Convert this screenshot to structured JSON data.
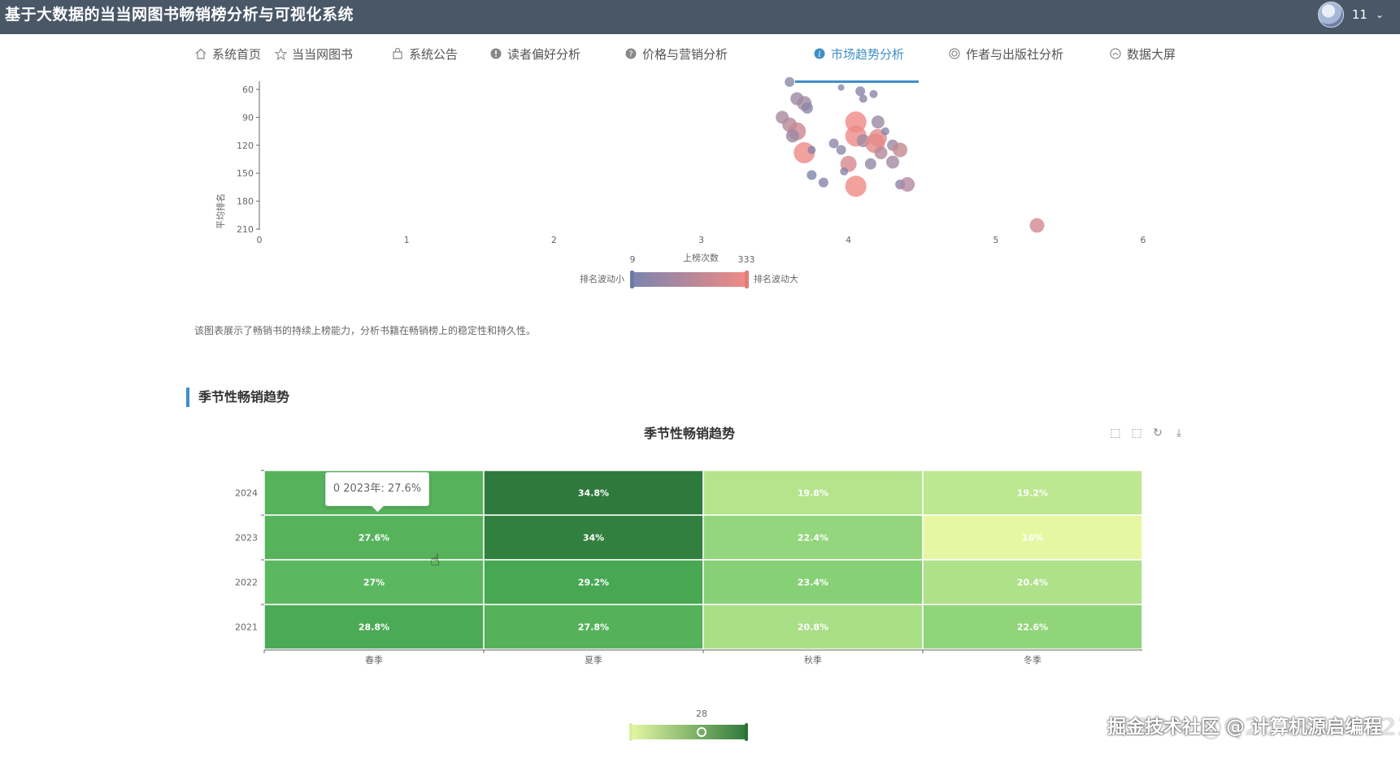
{
  "app": {
    "title": "基于大数据的当当网图书畅销榜分析与可视化系统",
    "user_name": "11"
  },
  "nav": {
    "tabs": [
      {
        "label": "系统首页",
        "icon": "home-icon"
      },
      {
        "label": "当当网图书",
        "icon": "star-icon"
      },
      {
        "label": "系统公告",
        "icon": "bag-icon"
      },
      {
        "label": "读者偏好分析",
        "icon": "exclamation-icon"
      },
      {
        "label": "价格与营销分析",
        "icon": "question-icon"
      },
      {
        "label": "市场趋势分析",
        "icon": "info-icon",
        "active": true
      },
      {
        "label": "作者与出版社分析",
        "icon": "circle-icon"
      },
      {
        "label": "数据大屏",
        "icon": "dashboard-icon"
      }
    ]
  },
  "scatter": {
    "ylabel": "平均排名",
    "xlabel": "",
    "yticks": [
      "60",
      "90",
      "120",
      "150",
      "180",
      "210"
    ],
    "xticks": [
      "0",
      "1",
      "2",
      "3",
      "4",
      "5",
      "6"
    ],
    "visualmap": {
      "title": "上榜次数",
      "min": "9",
      "max": "333",
      "low_label": "排名波动小",
      "high_label": "排名波动大",
      "color_low": "#7b85b0",
      "color_high": "#f08a84"
    },
    "description": "该图表展示了畅销书的持续上榜能力，分析书籍在畅销榜上的稳定性和持久性。"
  },
  "chart_data": [
    {
      "type": "scatter",
      "ylabel": "平均排名",
      "x_ticks": [
        0,
        1,
        2,
        3,
        4,
        5,
        6
      ],
      "y_ticks": [
        60,
        90,
        120,
        150,
        180,
        210
      ],
      "y_inverse": true,
      "points": [
        {
          "x": 3.6,
          "y": 52,
          "size": 6,
          "color": "#8c87a6"
        },
        {
          "x": 3.65,
          "y": 70,
          "size": 8,
          "color": "#9a88a3"
        },
        {
          "x": 3.7,
          "y": 75,
          "size": 9,
          "color": "#a08aa0"
        },
        {
          "x": 3.72,
          "y": 80,
          "size": 7,
          "color": "#8a86a8"
        },
        {
          "x": 3.55,
          "y": 90,
          "size": 8,
          "color": "#a88aa0"
        },
        {
          "x": 3.6,
          "y": 98,
          "size": 9,
          "color": "#b28a9b"
        },
        {
          "x": 3.65,
          "y": 105,
          "size": 11,
          "color": "#cc8690"
        },
        {
          "x": 3.62,
          "y": 110,
          "size": 8,
          "color": "#9b88a4"
        },
        {
          "x": 3.7,
          "y": 128,
          "size": 13,
          "color": "#ee8a86"
        },
        {
          "x": 3.75,
          "y": 125,
          "size": 5,
          "color": "#8785aa"
        },
        {
          "x": 3.75,
          "y": 152,
          "size": 6,
          "color": "#7f84ad"
        },
        {
          "x": 3.9,
          "y": 118,
          "size": 6,
          "color": "#8d86a8"
        },
        {
          "x": 4.0,
          "y": 140,
          "size": 10,
          "color": "#d68890"
        },
        {
          "x": 4.05,
          "y": 95,
          "size": 13,
          "color": "#ef8a86"
        },
        {
          "x": 4.05,
          "y": 110,
          "size": 13,
          "color": "#ee8a86"
        },
        {
          "x": 3.97,
          "y": 148,
          "size": 5,
          "color": "#8a86a8"
        },
        {
          "x": 4.1,
          "y": 115,
          "size": 8,
          "color": "#9f89a2"
        },
        {
          "x": 4.18,
          "y": 118,
          "size": 12,
          "color": "#e48a88"
        },
        {
          "x": 4.2,
          "y": 112,
          "size": 11,
          "color": "#e58a88"
        },
        {
          "x": 4.15,
          "y": 140,
          "size": 7,
          "color": "#9488a6"
        },
        {
          "x": 4.22,
          "y": 128,
          "size": 8,
          "color": "#b38a9a"
        },
        {
          "x": 4.25,
          "y": 105,
          "size": 5,
          "color": "#8685aa"
        },
        {
          "x": 4.3,
          "y": 138,
          "size": 8,
          "color": "#a389a0"
        },
        {
          "x": 4.2,
          "y": 95,
          "size": 8,
          "color": "#9a88a3"
        },
        {
          "x": 4.3,
          "y": 120,
          "size": 7,
          "color": "#9c89a3"
        },
        {
          "x": 4.35,
          "y": 125,
          "size": 9,
          "color": "#c3898f"
        },
        {
          "x": 4.05,
          "y": 164,
          "size": 13,
          "color": "#f08a84"
        },
        {
          "x": 3.83,
          "y": 160,
          "size": 6,
          "color": "#8784aa"
        },
        {
          "x": 3.95,
          "y": 125,
          "size": 6,
          "color": "#8f87a7"
        },
        {
          "x": 4.35,
          "y": 162,
          "size": 6,
          "color": "#8985a9"
        },
        {
          "x": 4.4,
          "y": 162,
          "size": 9,
          "color": "#b289a0"
        },
        {
          "x": 4.08,
          "y": 62,
          "size": 6,
          "color": "#8985a9"
        },
        {
          "x": 4.1,
          "y": 70,
          "size": 5,
          "color": "#8886aa"
        },
        {
          "x": 4.17,
          "y": 65,
          "size": 5,
          "color": "#8986a9"
        },
        {
          "x": 3.95,
          "y": 58,
          "size": 4,
          "color": "#8886aa"
        },
        {
          "x": 5.28,
          "y": 206,
          "size": 9,
          "color": "#d28890"
        }
      ]
    },
    {
      "type": "heatmap",
      "title": "季节性畅销趋势",
      "x_categories": [
        "春季",
        "夏季",
        "秋季",
        "冬季"
      ],
      "y_categories": [
        "2024",
        "2023",
        "2022",
        "2021"
      ],
      "values": [
        [
          27.6,
          34.8,
          19.8,
          19.2
        ],
        [
          27.6,
          34,
          22.4,
          16
        ],
        [
          27,
          29.2,
          23.4,
          20.4
        ],
        [
          28.8,
          27.8,
          20.8,
          22.6
        ]
      ],
      "labels": [
        [
          "",
          "34.8%",
          "19.8%",
          "19.2%"
        ],
        [
          "27.6%",
          "34%",
          "22.4%",
          "16%"
        ],
        [
          "27%",
          "29.2%",
          "23.4%",
          "20.4%"
        ],
        [
          "28.8%",
          "27.8%",
          "20.8%",
          "22.6%"
        ]
      ],
      "visualmap_value": "28",
      "color_low": "#e6f7a3",
      "color_high": "#2e7a3c"
    }
  ],
  "heatmap": {
    "section_title": "季节性畅销趋势",
    "title": "季节性畅销趋势",
    "tooltip": "0 2023年: 27.6%",
    "visualmap_value": "28"
  },
  "toolbox": [
    {
      "name": "zoom-icon"
    },
    {
      "name": "zoom-reset-icon"
    },
    {
      "name": "restore-icon"
    },
    {
      "name": "download-icon"
    }
  ],
  "watermark": {
    "text": "掘金技术社区 @ 计算机源启编程",
    "faint": "CSDN @Q2643365023"
  }
}
